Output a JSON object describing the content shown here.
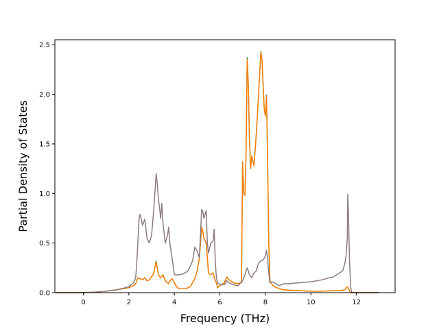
{
  "chart_data": {
    "type": "line",
    "title": "",
    "xlabel": "Frequency (THz)",
    "ylabel": "Partial Density of States",
    "xlim": [
      -1.25,
      13.7
    ],
    "ylim": [
      0,
      2.55
    ],
    "xticks": [
      0,
      2,
      4,
      6,
      8,
      10,
      12
    ],
    "xtick_labels": [
      "0",
      "2",
      "4",
      "6",
      "8",
      "10",
      "12"
    ],
    "yticks": [
      0.0,
      0.5,
      1.0,
      1.5,
      2.0,
      2.5
    ],
    "ytick_labels": [
      "0.0",
      "0.5",
      "1.0",
      "1.5",
      "2.0",
      "2.5"
    ],
    "grid": false,
    "legend": "none",
    "series": [
      {
        "color": "#2ca02c",
        "x": [
          -1.2,
          0.0,
          0.5,
          1.0,
          1.5,
          2.0,
          2.2,
          2.3,
          2.4,
          2.5,
          2.6,
          2.7,
          2.8,
          2.9,
          3.0,
          3.1,
          3.2,
          3.25,
          3.3,
          3.4,
          3.5,
          3.6,
          3.7,
          3.75,
          3.8,
          3.9,
          4.0,
          4.1,
          4.2,
          4.3,
          4.5,
          4.7,
          4.9,
          5.0,
          5.1,
          5.2,
          5.25,
          5.3,
          5.4,
          5.45,
          5.5,
          5.6,
          5.7,
          5.8,
          5.85,
          5.9,
          6.0,
          6.2,
          6.3,
          6.4,
          6.6,
          6.8,
          6.95,
          7.0,
          7.05,
          7.1,
          7.15,
          7.2,
          7.25,
          7.3,
          7.35,
          7.4,
          7.5,
          7.6,
          7.7,
          7.8,
          7.85,
          7.9,
          7.95,
          8.0,
          8.05,
          8.1,
          8.15,
          8.2,
          8.3,
          8.4,
          8.6,
          8.8,
          9.0,
          9.5,
          10.0,
          10.5,
          11.0,
          11.3,
          11.5,
          11.6,
          11.65,
          11.7,
          11.75,
          11.8,
          12.0,
          13.0
        ],
        "y": [
          0.0,
          0.0,
          0.005,
          0.015,
          0.03,
          0.05,
          0.07,
          0.09,
          0.15,
          0.14,
          0.13,
          0.15,
          0.12,
          0.13,
          0.16,
          0.2,
          0.32,
          0.25,
          0.18,
          0.15,
          0.18,
          0.12,
          0.1,
          0.09,
          0.12,
          0.14,
          0.1,
          0.06,
          0.04,
          0.04,
          0.04,
          0.06,
          0.14,
          0.22,
          0.35,
          0.66,
          0.62,
          0.55,
          0.5,
          0.35,
          0.2,
          0.18,
          0.2,
          0.12,
          0.1,
          0.05,
          0.07,
          0.1,
          0.16,
          0.13,
          0.1,
          0.09,
          0.1,
          1.32,
          1.0,
          0.98,
          1.4,
          2.37,
          2.1,
          1.55,
          1.25,
          1.38,
          1.28,
          1.6,
          2.0,
          2.43,
          2.35,
          2.1,
          1.85,
          1.78,
          1.99,
          1.3,
          0.5,
          0.12,
          0.08,
          0.06,
          0.04,
          0.03,
          0.025,
          0.02,
          0.015,
          0.015,
          0.02,
          0.02,
          0.03,
          0.06,
          0.04,
          0.02,
          0.0,
          0.0,
          0.0,
          0.0
        ]
      },
      {
        "color": "#ff7f0e",
        "x": [
          -1.2,
          0.0,
          0.5,
          1.0,
          1.5,
          2.0,
          2.2,
          2.3,
          2.4,
          2.5,
          2.6,
          2.7,
          2.8,
          2.9,
          3.0,
          3.1,
          3.2,
          3.25,
          3.3,
          3.4,
          3.5,
          3.6,
          3.7,
          3.75,
          3.8,
          3.9,
          4.0,
          4.1,
          4.2,
          4.3,
          4.5,
          4.7,
          4.9,
          5.0,
          5.1,
          5.2,
          5.25,
          5.3,
          5.4,
          5.45,
          5.5,
          5.6,
          5.7,
          5.8,
          5.85,
          5.9,
          6.0,
          6.2,
          6.3,
          6.4,
          6.6,
          6.8,
          6.95,
          7.0,
          7.05,
          7.1,
          7.15,
          7.2,
          7.25,
          7.3,
          7.35,
          7.4,
          7.5,
          7.6,
          7.7,
          7.8,
          7.85,
          7.9,
          7.95,
          8.0,
          8.05,
          8.1,
          8.15,
          8.2,
          8.3,
          8.4,
          8.6,
          8.8,
          9.0,
          9.5,
          10.0,
          10.5,
          11.0,
          11.3,
          11.5,
          11.6,
          11.65,
          11.7,
          11.75,
          11.8,
          12.0,
          13.0
        ],
        "y": [
          0.0,
          0.0,
          0.005,
          0.015,
          0.03,
          0.05,
          0.07,
          0.09,
          0.15,
          0.14,
          0.13,
          0.15,
          0.12,
          0.13,
          0.16,
          0.2,
          0.31,
          0.25,
          0.18,
          0.15,
          0.18,
          0.12,
          0.1,
          0.09,
          0.12,
          0.14,
          0.1,
          0.06,
          0.04,
          0.04,
          0.04,
          0.06,
          0.14,
          0.22,
          0.35,
          0.66,
          0.62,
          0.55,
          0.5,
          0.35,
          0.2,
          0.18,
          0.2,
          0.12,
          0.1,
          0.05,
          0.07,
          0.1,
          0.16,
          0.13,
          0.1,
          0.09,
          0.1,
          1.32,
          1.0,
          0.98,
          1.4,
          2.35,
          2.1,
          1.55,
          1.25,
          1.38,
          1.28,
          1.6,
          2.0,
          2.42,
          2.35,
          2.1,
          1.85,
          1.78,
          1.98,
          1.3,
          0.5,
          0.12,
          0.08,
          0.06,
          0.04,
          0.03,
          0.025,
          0.02,
          0.015,
          0.015,
          0.02,
          0.02,
          0.03,
          0.06,
          0.04,
          0.02,
          0.0,
          0.0,
          0.0,
          0.0
        ]
      },
      {
        "color": "#8c7b7f",
        "x": [
          -1.2,
          0.0,
          0.5,
          1.0,
          1.5,
          2.0,
          2.2,
          2.3,
          2.35,
          2.45,
          2.5,
          2.6,
          2.7,
          2.8,
          2.9,
          3.0,
          3.1,
          3.2,
          3.25,
          3.3,
          3.4,
          3.45,
          3.5,
          3.6,
          3.7,
          3.75,
          3.8,
          3.9,
          4.0,
          4.2,
          4.4,
          4.6,
          4.8,
          4.9,
          5.0,
          5.1,
          5.2,
          5.25,
          5.3,
          5.4,
          5.45,
          5.5,
          5.6,
          5.7,
          5.75,
          5.8,
          5.85,
          5.9,
          6.0,
          6.2,
          6.3,
          6.4,
          6.6,
          6.8,
          6.9,
          7.0,
          7.1,
          7.2,
          7.25,
          7.3,
          7.4,
          7.5,
          7.6,
          7.7,
          7.8,
          7.9,
          8.0,
          8.05,
          8.1,
          8.15,
          8.2,
          8.3,
          8.4,
          8.6,
          8.8,
          9.0,
          9.5,
          10.0,
          10.5,
          10.8,
          11.0,
          11.2,
          11.4,
          11.5,
          11.55,
          11.6,
          11.62,
          11.65,
          11.7,
          11.75,
          11.8,
          12.0,
          13.0
        ],
        "y": [
          0.0,
          0.0,
          0.005,
          0.015,
          0.03,
          0.06,
          0.1,
          0.15,
          0.3,
          0.75,
          0.79,
          0.68,
          0.74,
          0.55,
          0.5,
          0.58,
          0.85,
          1.2,
          1.1,
          0.95,
          0.75,
          0.9,
          0.7,
          0.5,
          0.58,
          0.66,
          0.5,
          0.35,
          0.18,
          0.18,
          0.19,
          0.22,
          0.32,
          0.46,
          0.42,
          0.35,
          0.84,
          0.82,
          0.75,
          0.83,
          0.5,
          0.4,
          0.5,
          0.52,
          0.64,
          0.3,
          0.15,
          0.1,
          0.08,
          0.08,
          0.12,
          0.1,
          0.08,
          0.07,
          0.1,
          0.12,
          0.18,
          0.25,
          0.22,
          0.18,
          0.15,
          0.2,
          0.22,
          0.3,
          0.32,
          0.33,
          0.37,
          0.43,
          0.34,
          0.2,
          0.1,
          0.11,
          0.1,
          0.07,
          0.09,
          0.09,
          0.1,
          0.11,
          0.13,
          0.15,
          0.16,
          0.19,
          0.22,
          0.3,
          0.38,
          0.55,
          0.99,
          0.8,
          0.3,
          0.05,
          0.0,
          0.0,
          0.0
        ]
      }
    ]
  }
}
